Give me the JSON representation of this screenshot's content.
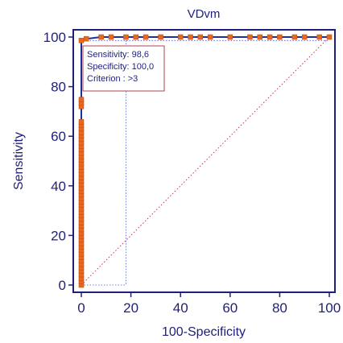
{
  "chart_data": {
    "type": "line",
    "title": "VDvm",
    "xlabel": "100-Specificity",
    "ylabel": "Sensitivity",
    "xlim": [
      0,
      100
    ],
    "ylim": [
      0,
      100
    ],
    "x_ticks": [
      0,
      20,
      40,
      60,
      80,
      100
    ],
    "y_ticks": [
      0,
      20,
      40,
      60,
      80,
      100
    ],
    "grid": false,
    "series": [
      {
        "type": "roc-curve",
        "color": "#1f2fa0",
        "marker_color": "#e8681e",
        "points": [
          [
            0,
            0
          ],
          [
            0,
            1.4
          ],
          [
            0,
            2.8
          ],
          [
            0,
            4.2
          ],
          [
            0,
            5.6
          ],
          [
            0,
            7
          ],
          [
            0,
            8.4
          ],
          [
            0,
            9.8
          ],
          [
            0,
            11.2
          ],
          [
            0,
            12.6
          ],
          [
            0,
            14
          ],
          [
            0,
            15.4
          ],
          [
            0,
            16.8
          ],
          [
            0,
            18.2
          ],
          [
            0,
            19.6
          ],
          [
            0,
            21
          ],
          [
            0,
            22.4
          ],
          [
            0,
            23.8
          ],
          [
            0,
            25.2
          ],
          [
            0,
            26.6
          ],
          [
            0,
            28
          ],
          [
            0,
            29.4
          ],
          [
            0,
            30.8
          ],
          [
            0,
            32.2
          ],
          [
            0,
            33.6
          ],
          [
            0,
            35
          ],
          [
            0,
            36.4
          ],
          [
            0,
            37.8
          ],
          [
            0,
            39.2
          ],
          [
            0,
            40.6
          ],
          [
            0,
            42
          ],
          [
            0,
            43.4
          ],
          [
            0,
            44.8
          ],
          [
            0,
            46.2
          ],
          [
            0,
            47.6
          ],
          [
            0,
            49
          ],
          [
            0,
            50.4
          ],
          [
            0,
            51.8
          ],
          [
            0,
            53.2
          ],
          [
            0,
            54.6
          ],
          [
            0,
            56
          ],
          [
            0,
            57.4
          ],
          [
            0,
            58.8
          ],
          [
            0,
            60.2
          ],
          [
            0,
            61.6
          ],
          [
            0,
            63
          ],
          [
            0,
            64.4
          ],
          [
            0,
            65.8
          ],
          [
            0,
            72
          ],
          [
            0,
            73.4
          ],
          [
            0,
            74.8
          ],
          [
            0,
            98.6
          ],
          [
            2,
            99.3
          ],
          [
            8,
            100
          ],
          [
            12,
            100
          ],
          [
            18,
            100
          ],
          [
            22,
            100
          ],
          [
            26,
            100
          ],
          [
            32,
            100
          ],
          [
            40,
            100
          ],
          [
            44,
            100
          ],
          [
            48,
            100
          ],
          [
            52,
            100
          ],
          [
            60,
            100
          ],
          [
            68,
            100
          ],
          [
            72,
            100
          ],
          [
            76,
            100
          ],
          [
            80,
            100
          ],
          [
            86,
            100
          ],
          [
            90,
            100
          ],
          [
            96,
            100
          ],
          [
            100,
            100
          ]
        ]
      }
    ],
    "reference_line": {
      "from": [
        0,
        0
      ],
      "to": [
        100,
        100
      ],
      "style": "dotted",
      "color": "#b04050"
    },
    "optimal_point": {
      "x": 0,
      "y": 98.6
    },
    "crosshair": {
      "x": 18,
      "y": 18
    },
    "annotation": {
      "lines": [
        "Sensitivity: 98,6",
        "Specificity: 100,0",
        "Criterion : >3"
      ],
      "border_color": "#b04050"
    },
    "colors": {
      "axis": "#1f1f7a",
      "text": "#1f1f7a"
    }
  }
}
